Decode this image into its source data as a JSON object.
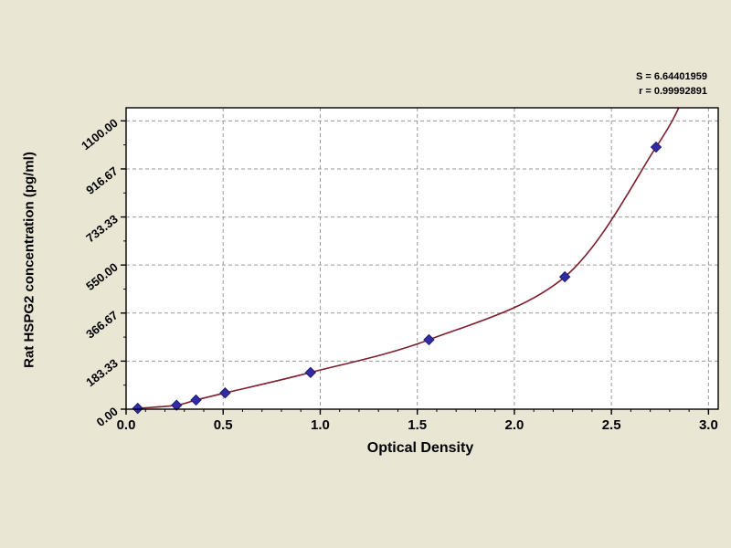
{
  "page": {
    "background": "#e9e6d4"
  },
  "chart_data": {
    "type": "scatter",
    "title": "",
    "xlabel": "Optical Density",
    "ylabel": "Rat HSPG2 concentration (pg/ml)",
    "annotations": {
      "line1": "S = 6.64401959",
      "line2": "r = 0.99992891"
    },
    "x": [
      0.06,
      0.26,
      0.36,
      0.51,
      0.95,
      1.56,
      2.26,
      2.73
    ],
    "y": [
      3,
      15,
      35,
      62,
      140,
      265,
      505,
      1000
    ],
    "xlim": [
      0,
      3.05
    ],
    "ylim": [
      0,
      1150
    ],
    "x_tick_values": [
      0.0,
      0.5,
      1.0,
      1.5,
      2.0,
      2.5,
      3.0
    ],
    "x_tick_labels": [
      "0.0",
      "0.5",
      "1.0",
      "1.5",
      "2.0",
      "2.5",
      "3.0"
    ],
    "y_tick_values": [
      0,
      183.33,
      366.67,
      550,
      733.33,
      916.67,
      1100
    ],
    "y_tick_labels": [
      "0.00",
      "183.33",
      "366.67",
      "550.00",
      "733.33",
      "916.67",
      "1100.00"
    ],
    "grid": "dashed",
    "legend": "none",
    "curve_start_point": {
      "x": 0.05,
      "y": 0
    },
    "curve_extension_point": {
      "x": 2.86,
      "y": 1170
    },
    "colors": {
      "curve": "#7c1f2e",
      "marker": "#312ba4",
      "marker_edge": "#1d1870",
      "grid": "#9a9a9a",
      "plot_bg": "#ffffff",
      "axis": "#000000",
      "background": "#e9e6d4"
    }
  }
}
